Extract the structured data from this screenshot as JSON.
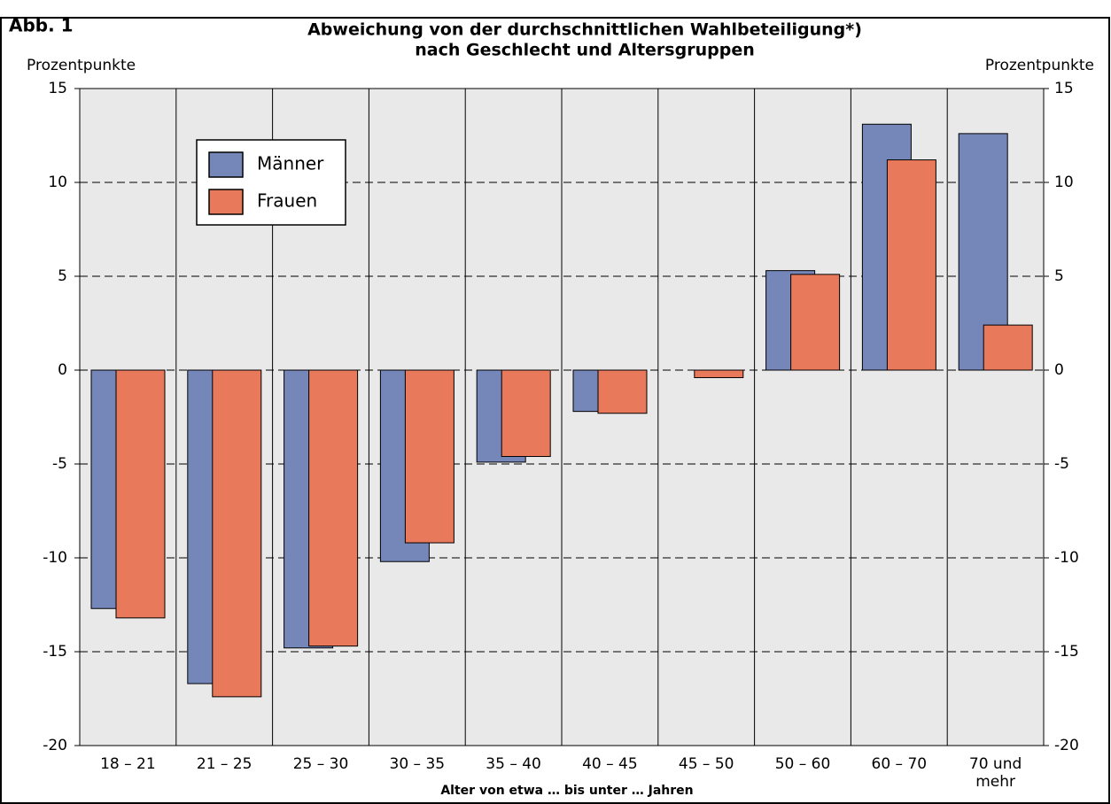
{
  "chart_data": {
    "type": "bar",
    "figure_label": "Abb. 1",
    "title": "Abweichung von der durchschnittlichen Wahlbeteiligung*)",
    "subtitle": "nach Geschlecht und Altersgruppen",
    "ylabel": "Prozentpunkte",
    "xlabel": "Alter von etwa … bis unter … Jahren",
    "categories": [
      "18 – 21",
      "21 – 25",
      "25 – 30",
      "30 – 35",
      "35 – 40",
      "40 – 45",
      "45 – 50",
      "50 – 60",
      "60 – 70",
      "70 und mehr"
    ],
    "series": [
      {
        "name": "Männer",
        "color": "#7586b9",
        "values": [
          -12.7,
          -16.7,
          -14.8,
          -10.2,
          -4.9,
          -2.2,
          0,
          5.3,
          13.1,
          12.6
        ]
      },
      {
        "name": "Frauen",
        "color": "#e8795b",
        "values": [
          -13.2,
          -17.4,
          -14.7,
          -9.2,
          -4.6,
          -2.3,
          -0.4,
          5.1,
          11.2,
          2.4
        ]
      }
    ],
    "ylim": [
      -20,
      15
    ],
    "yticks": [
      -20,
      -15,
      -10,
      -5,
      0,
      5,
      10,
      15
    ],
    "grid": true,
    "legend": "upper left"
  }
}
